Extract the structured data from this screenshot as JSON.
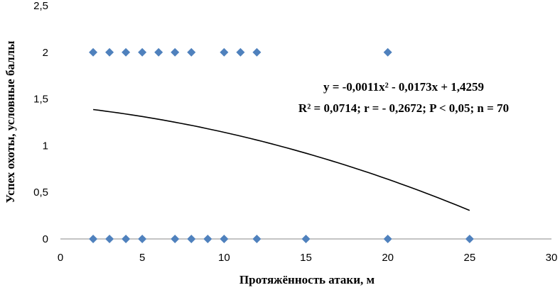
{
  "chart_data": {
    "type": "scatter",
    "xlabel": "Протяжённость атаки, м",
    "ylabel": "Успех охоты, условные баллы",
    "xlim": [
      0,
      30
    ],
    "ylim": [
      0,
      2.5
    ],
    "xticks": [
      0,
      5,
      10,
      15,
      20,
      25,
      30
    ],
    "yticks": [
      0,
      0.5,
      1,
      1.5,
      2,
      2.5
    ],
    "xtick_labels": [
      "0",
      "5",
      "10",
      "15",
      "20",
      "25",
      "30"
    ],
    "ytick_labels": [
      "0",
      "0,5",
      "1",
      "1,5",
      "2",
      "2,5"
    ],
    "grid": false,
    "series": [
      {
        "color": "#4F81BD",
        "marker": "diamond",
        "points": [
          [
            2,
            2
          ],
          [
            3,
            2
          ],
          [
            4,
            2
          ],
          [
            5,
            2
          ],
          [
            6,
            2
          ],
          [
            7,
            2
          ],
          [
            8,
            2
          ],
          [
            10,
            2
          ],
          [
            11,
            2
          ],
          [
            12,
            2
          ],
          [
            20,
            2
          ],
          [
            2,
            0
          ],
          [
            3,
            0
          ],
          [
            4,
            0
          ],
          [
            5,
            0
          ],
          [
            7,
            0
          ],
          [
            8,
            0
          ],
          [
            9,
            0
          ],
          [
            10,
            0
          ],
          [
            12,
            0
          ],
          [
            15,
            0
          ],
          [
            20,
            0
          ],
          [
            25,
            0
          ]
        ]
      }
    ],
    "trendline": {
      "type": "polynomial",
      "coefficients": [
        -0.0011,
        -0.0173,
        1.4259
      ],
      "x_range": [
        2,
        25
      ],
      "color": "#000000"
    },
    "annotations": {
      "equation": "y = -0,0011x² - 0,0173x + 1,4259",
      "stats": "R² = 0,0714; r = - 0,2672; P < 0,05; n = 70"
    }
  }
}
